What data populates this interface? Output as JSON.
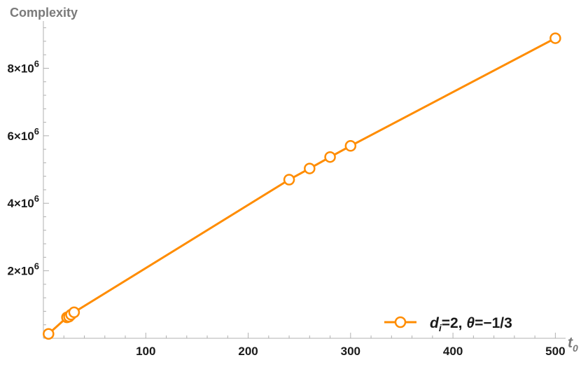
{
  "chart_data": {
    "type": "line",
    "ylabel": "Complexity",
    "xlabel_base": "t",
    "xlabel_sub": "0",
    "xlim": [
      0,
      510
    ],
    "ylim": [
      0,
      9400000
    ],
    "x_ticks": [
      {
        "value": 100,
        "label": "100"
      },
      {
        "value": 200,
        "label": "200"
      },
      {
        "value": 300,
        "label": "300"
      },
      {
        "value": 400,
        "label": "400"
      },
      {
        "value": 500,
        "label": "500"
      }
    ],
    "y_ticks": [
      {
        "value": 2000000,
        "mantissa": "2",
        "base": "×10",
        "exp": "6"
      },
      {
        "value": 4000000,
        "mantissa": "4",
        "base": "×10",
        "exp": "6"
      },
      {
        "value": 6000000,
        "mantissa": "6",
        "base": "×10",
        "exp": "6"
      },
      {
        "value": 8000000,
        "mantissa": "8",
        "base": "×10",
        "exp": "6"
      }
    ],
    "series": [
      {
        "color": "#ff8c00",
        "x": [
          5,
          23,
          25,
          27,
          30,
          240,
          260,
          280,
          300,
          500
        ],
        "y": [
          130000,
          620000,
          640000,
          700000,
          770000,
          4700000,
          5030000,
          5370000,
          5700000,
          8890000
        ],
        "legend": {
          "d": "d",
          "sub": "i",
          "rest1": "=2, ",
          "theta": "θ",
          "rest2": "=−1/3"
        }
      }
    ]
  }
}
